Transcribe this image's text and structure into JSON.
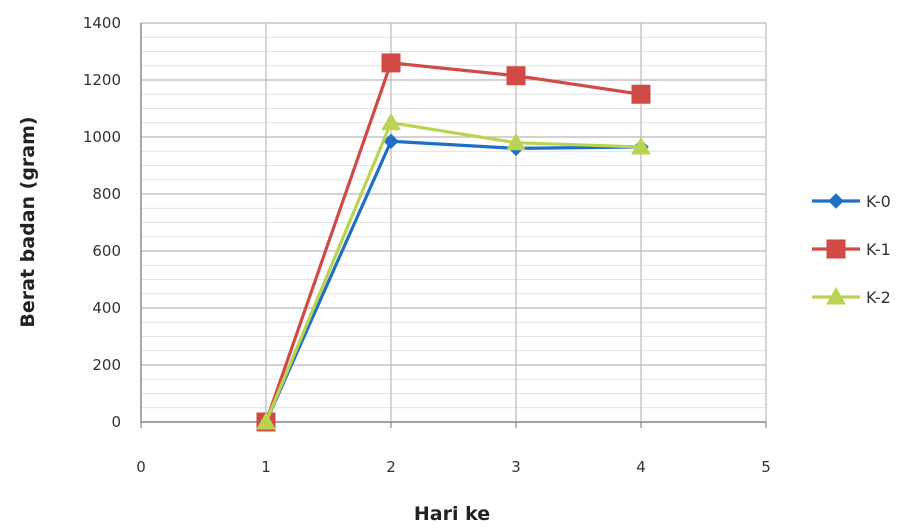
{
  "chart_data": {
    "type": "line",
    "xlabel": "Hari ke",
    "ylabel": "Berat badan (gram)",
    "xlim": [
      0,
      5
    ],
    "ylim": [
      0,
      1400
    ],
    "x_ticks": [
      "0",
      "1",
      "2",
      "3",
      "4",
      "5"
    ],
    "y_ticks": [
      "0",
      "200",
      "400",
      "600",
      "800",
      "1000",
      "1200",
      "1400"
    ],
    "grid": true,
    "legend_position": "right",
    "series": [
      {
        "name": "K-0",
        "color": "#1f6fc5",
        "marker": "diamond",
        "x": [
          1,
          2,
          3,
          4
        ],
        "y": [
          0,
          985,
          960,
          965
        ]
      },
      {
        "name": "K-1",
        "color": "#d24a45",
        "marker": "square",
        "x": [
          1,
          2,
          3,
          4
        ],
        "y": [
          0,
          1260,
          1215,
          1150
        ]
      },
      {
        "name": "K-2",
        "color": "#b9d452",
        "marker": "triangle",
        "x": [
          1,
          2,
          3,
          4
        ],
        "y": [
          0,
          1050,
          980,
          965
        ]
      }
    ]
  }
}
